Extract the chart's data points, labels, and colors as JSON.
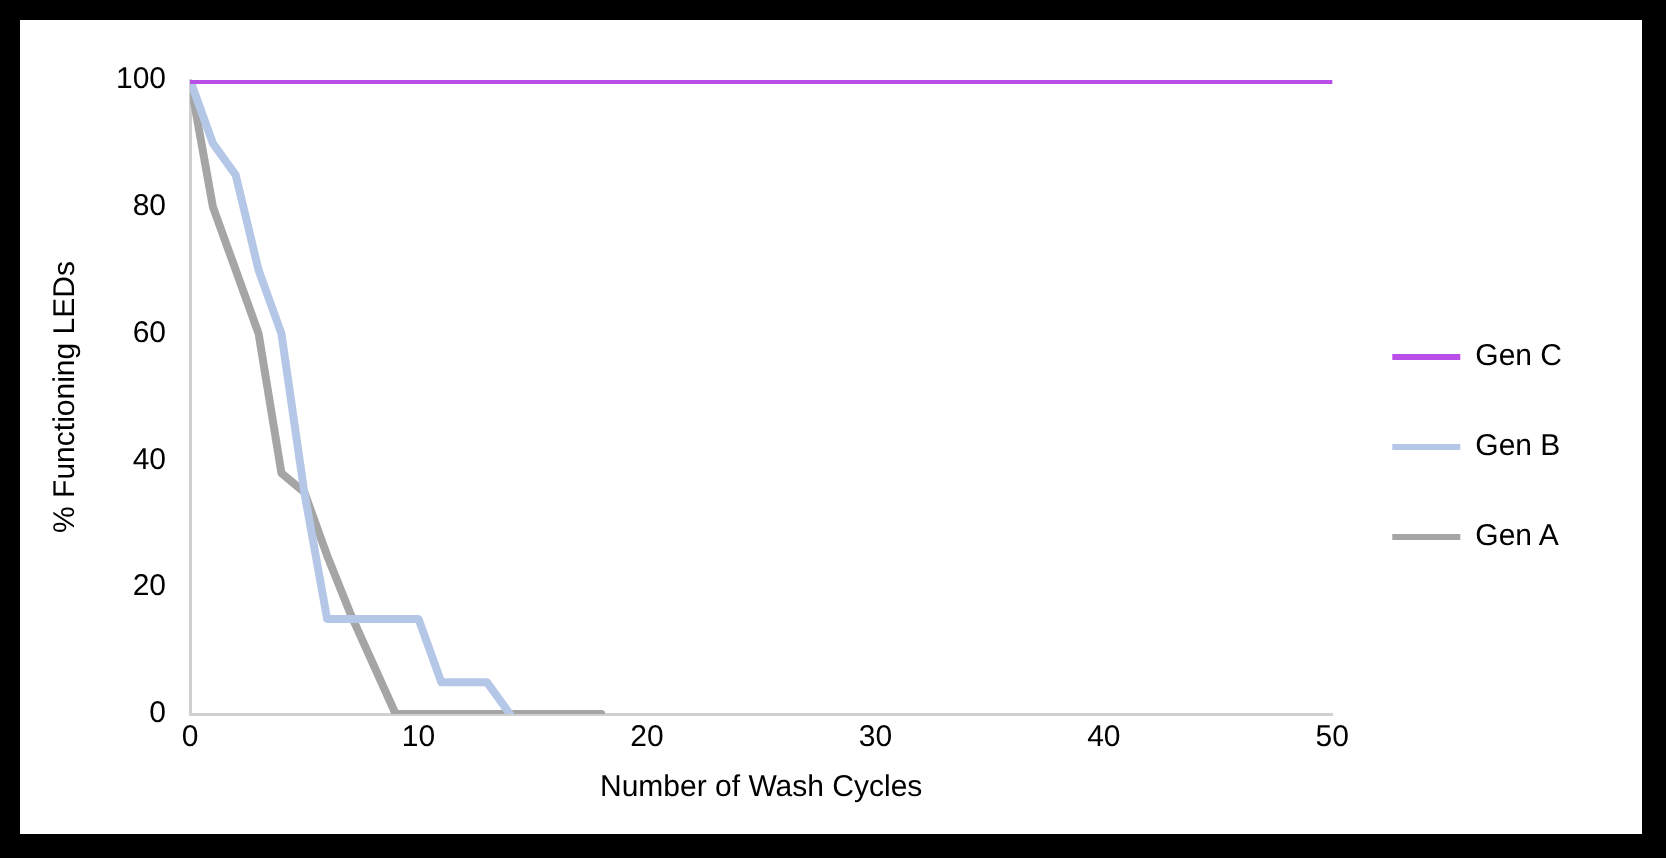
{
  "chart_data": {
    "type": "line",
    "xlabel": "Number of Wash Cycles",
    "ylabel": "% Functioning LEDs",
    "xlim": [
      0,
      50
    ],
    "xticks": [
      0,
      10,
      20,
      30,
      40,
      50
    ],
    "ylim": [
      0,
      100
    ],
    "yticks": [
      0,
      20,
      40,
      60,
      80,
      100
    ],
    "grid": false,
    "legend": "right",
    "marker": "none",
    "line_style": "solid",
    "series": [
      {
        "name": "Gen C",
        "color": "#b94ee8",
        "x": [
          0,
          50
        ],
        "values": [
          100,
          100
        ]
      },
      {
        "name": "Gen B",
        "color": "#b4c7e7",
        "x": [
          0,
          1,
          2,
          3,
          4,
          5,
          6,
          7,
          8,
          9,
          10,
          11,
          12,
          13,
          14
        ],
        "values": [
          100,
          90,
          85,
          70,
          60,
          35,
          15,
          15,
          15,
          15,
          15,
          5,
          5,
          5,
          0
        ]
      },
      {
        "name": "Gen A",
        "color": "#a5a5a5",
        "x": [
          0,
          1,
          2,
          3,
          4,
          5,
          6,
          7,
          8,
          9,
          10,
          11,
          12,
          13,
          14,
          15,
          16,
          17,
          18
        ],
        "values": [
          100,
          80,
          70,
          60,
          38,
          35,
          25,
          16,
          8,
          0,
          0,
          0,
          0,
          0,
          0,
          0,
          0,
          0,
          0
        ]
      }
    ]
  }
}
